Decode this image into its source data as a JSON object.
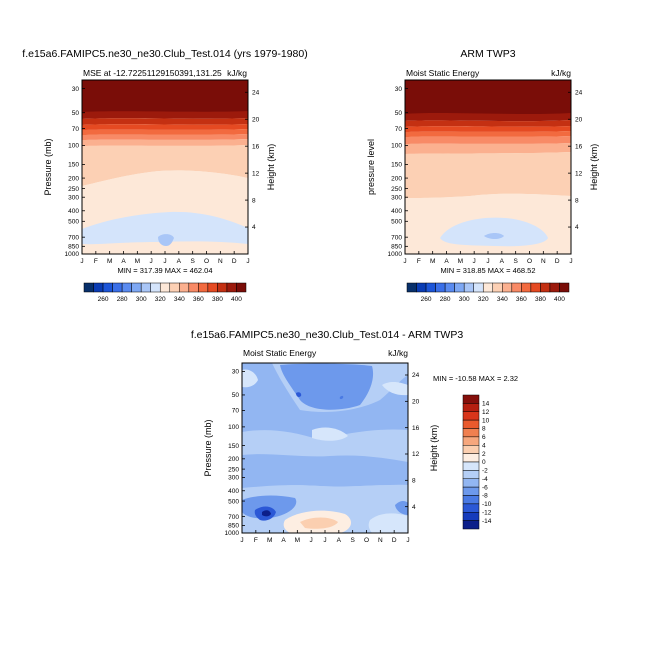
{
  "chart_data": [
    {
      "type": "heatmap",
      "title": "f.e15a6.FAMIPC5.ne30_ne30.Club_Test.014 (yrs 1979-1980)",
      "left_label": "MSE at -12.72251129150391,131.25",
      "right_label": "kJ/kg",
      "ylabel": "Pressure (mb)",
      "ylabel_right": "Height (km)",
      "x_ticks": [
        "J",
        "F",
        "M",
        "A",
        "M",
        "J",
        "J",
        "A",
        "S",
        "O",
        "N",
        "D",
        "J"
      ],
      "y_ticks": [
        "30",
        "50",
        "70",
        "100",
        "150",
        "200",
        "250",
        "300",
        "400",
        "500",
        "700",
        "850",
        "1000"
      ],
      "y_ticks_right": [
        "24",
        "20",
        "16",
        "12",
        "8",
        "4"
      ],
      "stats": "MIN = 317.39  MAX = 462.04",
      "min": 317.39,
      "max": 462.04,
      "colorbar_labels": [
        "260",
        "280",
        "300",
        "320",
        "340",
        "360",
        "380",
        "400"
      ]
    },
    {
      "type": "heatmap",
      "title": "ARM TWP3",
      "left_label": "Moist Static Energy",
      "right_label": "kJ/kg",
      "ylabel": "pressure level",
      "ylabel_right": "Height (km)",
      "x_ticks": [
        "J",
        "F",
        "M",
        "A",
        "M",
        "J",
        "J",
        "A",
        "S",
        "O",
        "N",
        "D",
        "J"
      ],
      "y_ticks": [
        "30",
        "50",
        "70",
        "100",
        "150",
        "200",
        "250",
        "300",
        "400",
        "500",
        "700",
        "850",
        "1000"
      ],
      "y_ticks_right": [
        "24",
        "20",
        "16",
        "12",
        "8",
        "4"
      ],
      "stats": "MIN = 318.85  MAX = 468.52",
      "min": 318.85,
      "max": 468.52,
      "colorbar_labels": [
        "260",
        "280",
        "300",
        "320",
        "340",
        "360",
        "380",
        "400"
      ]
    },
    {
      "type": "heatmap",
      "title": "f.e15a6.FAMIPC5.ne30_ne30.Club_Test.014 - ARM TWP3",
      "left_label": "Moist Static Energy",
      "right_label": "kJ/kg",
      "ylabel": "Pressure (mb)",
      "ylabel_right": "Height (km)",
      "x_ticks": [
        "J",
        "F",
        "M",
        "A",
        "M",
        "J",
        "J",
        "A",
        "S",
        "O",
        "N",
        "D",
        "J"
      ],
      "y_ticks": [
        "30",
        "50",
        "70",
        "100",
        "150",
        "200",
        "250",
        "300",
        "400",
        "500",
        "700",
        "850",
        "1000"
      ],
      "y_ticks_right": [
        "24",
        "20",
        "16",
        "12",
        "8",
        "4"
      ],
      "stats": "MIN = -10.58  MAX =  2.32",
      "min": -10.58,
      "max": 2.32,
      "colorbar_labels": [
        "14",
        "12",
        "10",
        "8",
        "6",
        "4",
        "2",
        "0",
        "-2",
        "-4",
        "-6",
        "-8",
        "-10",
        "-12",
        "-14"
      ]
    }
  ],
  "colors": {
    "sequential": [
      "#08306b",
      "#0a3cb4",
      "#1c55d8",
      "#3a6fe8",
      "#5a8bf0",
      "#7ea8f4",
      "#a9c6f7",
      "#d4e4fb",
      "#fde8d8",
      "#fcd0b4",
      "#fbb08f",
      "#f88a66",
      "#f26a3f",
      "#e54a22",
      "#c43012",
      "#9c1a0c",
      "#7a0d08"
    ],
    "diverging": [
      "#850f0b",
      "#b51f10",
      "#d8351a",
      "#e95a2d",
      "#f08050",
      "#f6a77d",
      "#fbcfb0",
      "#fdeee2",
      "#d6e6fb",
      "#b5cff6",
      "#92b6f2",
      "#6d99ec",
      "#4a7ae4",
      "#2b58d6",
      "#153bbc",
      "#0c1f8a"
    ]
  }
}
